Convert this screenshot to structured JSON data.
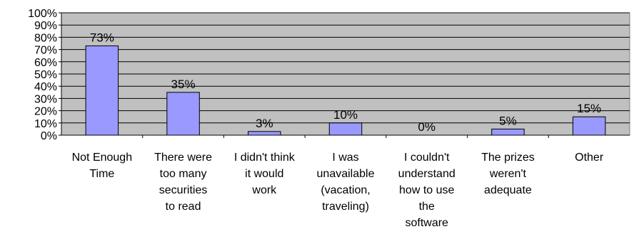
{
  "chart_data": {
    "type": "bar",
    "title": "",
    "xlabel": "",
    "ylabel": "",
    "ylim": [
      0,
      100
    ],
    "ytick_step": 10,
    "ytick_suffix": "%",
    "grid": true,
    "legend": "none",
    "categories": [
      [
        "Not Enough",
        "Time"
      ],
      [
        "There were",
        "too many",
        "securities",
        "to read"
      ],
      [
        "I didn't think",
        "it would",
        "work"
      ],
      [
        "I was",
        "unavailable",
        "(vacation,",
        "traveling)"
      ],
      [
        "I couldn't",
        "understand",
        "how to use",
        "the",
        "software"
      ],
      [
        "The prizes",
        "weren't",
        "adequate"
      ],
      [
        "Other"
      ]
    ],
    "values": [
      73,
      35,
      3,
      10,
      0,
      5,
      15
    ],
    "data_labels": [
      "73%",
      "35%",
      "3%",
      "10%",
      "0%",
      "5%",
      "15%"
    ],
    "colors": {
      "plot_bg": "#c0c0c0",
      "bar_fill": "#9999ff",
      "bar_stroke": "#000000",
      "grid": "#000000"
    }
  }
}
